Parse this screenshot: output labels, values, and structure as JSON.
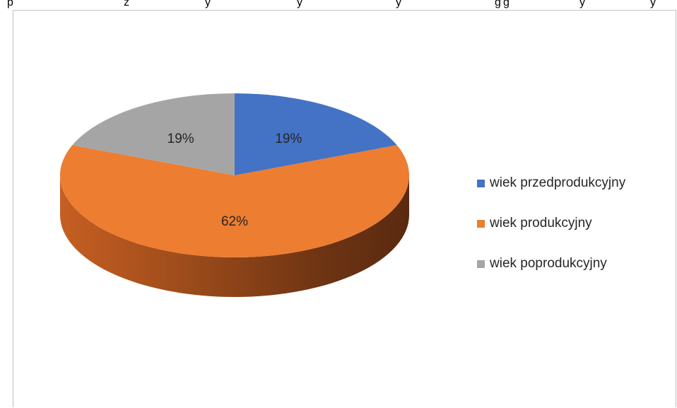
{
  "page_text_fragments": [
    "p",
    "z",
    "y",
    "y",
    "y",
    "g",
    "g",
    "y",
    "y"
  ],
  "chart_data": {
    "type": "pie",
    "title": "",
    "categories": [
      "wiek przedprodukcyjny",
      "wiek produkcyjny",
      "wiek poprodukcyjny"
    ],
    "values": [
      19,
      62,
      19
    ],
    "data_labels": [
      "19%",
      "62%",
      "19%"
    ],
    "colors": [
      "#4472c4",
      "#ed7d31",
      "#a5a5a5"
    ],
    "style": "3d",
    "legend_position": "right",
    "legend": [
      {
        "label": "wiek przedprodukcyjny",
        "color": "#4472c4"
      },
      {
        "label": "wiek produkcyjny",
        "color": "#ed7d31"
      },
      {
        "label": "wiek poprodukcyjny",
        "color": "#a5a5a5"
      }
    ]
  }
}
